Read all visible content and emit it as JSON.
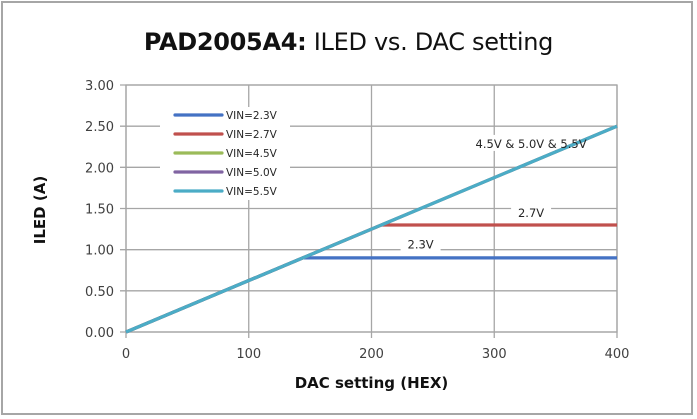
{
  "chart_data": {
    "type": "line",
    "title": "PAD2005A4: ILED vs. DAC setting",
    "title_prefix": "PAD2005A4:",
    "title_suffix": " ILED vs. DAC setting",
    "xlabel": "DAC setting (HEX)",
    "ylabel": "ILED (A)",
    "xlim": [
      0,
      400
    ],
    "ylim": [
      0,
      3.0
    ],
    "x_ticks": [
      "0",
      "100",
      "200",
      "300",
      "400"
    ],
    "y_ticks": [
      "0.00",
      "0.50",
      "1.00",
      "1.50",
      "2.00",
      "2.50",
      "3.00"
    ],
    "grid": true,
    "legend_position": "upper-left-inside",
    "series": [
      {
        "name": "VIN=2.3V",
        "color": "#4472c4",
        "x": [
          0,
          144,
          400
        ],
        "y": [
          0.0,
          0.9,
          0.9
        ]
      },
      {
        "name": "VIN=2.7V",
        "color": "#c0504d",
        "x": [
          0,
          208,
          400
        ],
        "y": [
          0.0,
          1.3,
          1.3
        ]
      },
      {
        "name": "VIN=4.5V",
        "color": "#9bbb59",
        "x": [
          0,
          400
        ],
        "y": [
          0.0,
          2.5
        ]
      },
      {
        "name": "VIN=5.0V",
        "color": "#8064a2",
        "x": [
          0,
          400
        ],
        "y": [
          0.0,
          2.5
        ]
      },
      {
        "name": "VIN=5.5V",
        "color": "#4bacc6",
        "x": [
          0,
          400
        ],
        "y": [
          0.0,
          2.5
        ]
      }
    ],
    "annotations": [
      {
        "text": "4.5V & 5.0V & 5.5V",
        "x": 330,
        "y": 2.26
      },
      {
        "text": "2.7V",
        "x": 330,
        "y": 1.42
      },
      {
        "text": "2.3V",
        "x": 240,
        "y": 1.04
      }
    ]
  }
}
